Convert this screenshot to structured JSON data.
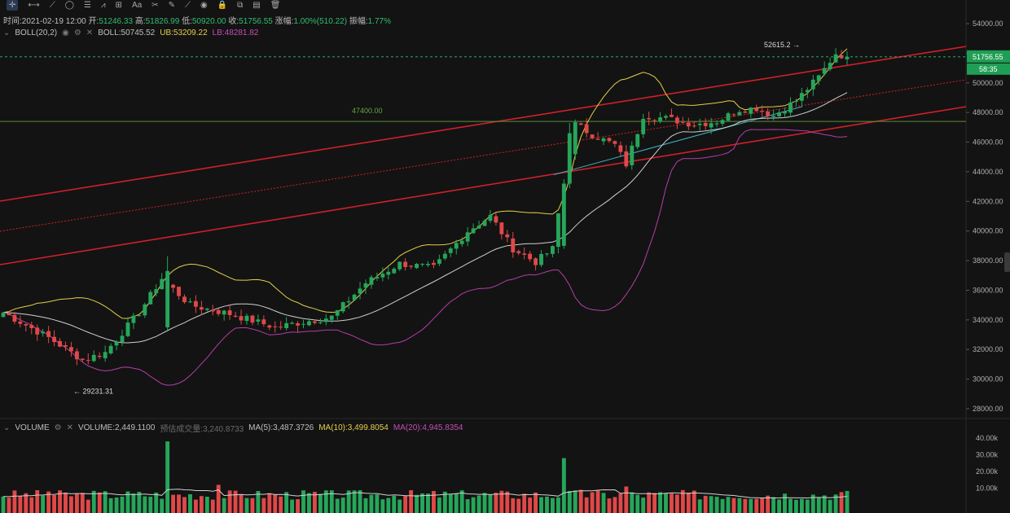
{
  "toolbar": {
    "tools": [
      {
        "name": "crosshair-tool-icon",
        "glyph": "✛",
        "active": true
      },
      {
        "name": "horizontal-line-tool-icon",
        "glyph": "⟷"
      },
      {
        "name": "trend-line-tool-icon",
        "glyph": "⟋"
      },
      {
        "name": "shape-tool-icon",
        "glyph": "◯"
      },
      {
        "name": "fib-tool-icon",
        "glyph": "☰"
      },
      {
        "name": "pattern-tool-icon",
        "glyph": "⩘"
      },
      {
        "name": "measure-tool-icon",
        "glyph": "⊞"
      },
      {
        "name": "text-tool-icon",
        "glyph": "Aa"
      },
      {
        "name": "magnet-tool-icon",
        "glyph": "✂"
      },
      {
        "name": "ruler-tool-icon",
        "glyph": "✎"
      },
      {
        "name": "draw-mode-tool-icon",
        "glyph": "⟋"
      },
      {
        "name": "eye-tool-icon",
        "glyph": "◉"
      },
      {
        "name": "lock-tool-icon",
        "glyph": "🔒"
      },
      {
        "name": "copy-tool-icon",
        "glyph": "⧉"
      },
      {
        "name": "layers-tool-icon",
        "glyph": "▤"
      },
      {
        "name": "delete-tool-icon",
        "glyph": "🗑"
      }
    ]
  },
  "ohlc": {
    "time_label": "时间:",
    "time": "2021-02-19 12:00",
    "open_label": "开:",
    "open": "51246.33",
    "high_label": "高:",
    "high": "51826.99",
    "low_label": "低:",
    "low": "50920.00",
    "close_label": "收:",
    "close": "51756.55",
    "change_label": "涨幅:",
    "change": "1.00%(510.22)",
    "amplitude_label": "振幅:",
    "amplitude": "1.77%"
  },
  "boll": {
    "name": "BOLL(20,2)",
    "mid": "BOLL:50745.52",
    "ub": "UB:53209.22",
    "lb": "LB:48281.82"
  },
  "volume_header": {
    "name": "VOLUME",
    "volume": "VOLUME:2,449.1100",
    "predicted": "预估成交量:3,240.8733",
    "ma5": "MA(5):3,487.3726",
    "ma10": "MA(10):3,499.8054",
    "ma20": "MA(20):4,945.8354"
  },
  "price_axis": {
    "ticks": [
      "54000.00",
      "52000.00",
      "50000.00",
      "48000.00",
      "46000.00",
      "44000.00",
      "42000.00",
      "40000.00",
      "38000.00",
      "36000.00",
      "34000.00",
      "32000.00",
      "30000.00",
      "28000.00"
    ],
    "current_price": "51756.55",
    "countdown": "58:35"
  },
  "volume_axis": {
    "ticks": [
      "40.00k",
      "30.00k",
      "20.00k",
      "10.00k"
    ]
  },
  "annotations": {
    "high_marker": "52615.2",
    "low_marker": "29231.31",
    "level_label": "47400.00"
  },
  "colors": {
    "up": "#26a65b",
    "down": "#e04848",
    "boll_mid": "#cfcfcf",
    "boll_upper": "#e3cf4b",
    "boll_lower": "#b53ea8",
    "channel": "#d11f2a",
    "horizontal": "#5b8f3a",
    "teal_line": "#3fb3c0"
  }
}
